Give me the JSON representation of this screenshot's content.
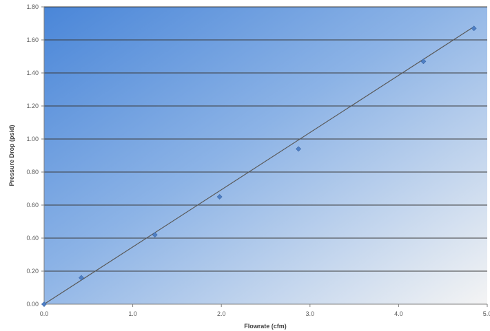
{
  "chart_data": {
    "type": "scatter",
    "title": "",
    "xlabel": "Flowrate (cfm)",
    "ylabel": "Pressure Drop (psid)",
    "xlim": [
      0.0,
      5.0
    ],
    "ylim": [
      0.0,
      1.8
    ],
    "x_ticks": [
      "0.0",
      "1.0",
      "2.0",
      "3.0",
      "4.0",
      "5.0"
    ],
    "y_ticks": [
      "0.00",
      "0.20",
      "0.40",
      "0.60",
      "0.80",
      "1.00",
      "1.20",
      "1.40",
      "1.60",
      "1.80"
    ],
    "grid": "horizontal",
    "legend": "none",
    "series": [
      {
        "points": [
          {
            "x": 0.0,
            "y": 0.0
          },
          {
            "x": 0.42,
            "y": 0.16
          },
          {
            "x": 1.25,
            "y": 0.42
          },
          {
            "x": 1.98,
            "y": 0.65
          },
          {
            "x": 2.87,
            "y": 0.94
          },
          {
            "x": 4.28,
            "y": 1.47
          },
          {
            "x": 4.85,
            "y": 1.67
          }
        ]
      }
    ],
    "trendline": {
      "type": "linear",
      "from": {
        "x": 0.0,
        "y": 0.0
      },
      "to": {
        "x": 4.85,
        "y": 1.68
      }
    },
    "colors": {
      "plot_gradient_start": "#4a86d8",
      "plot_gradient_end": "#f4f4f4",
      "marker": "#4f7fc4",
      "trendline": "#595959",
      "gridline": "#3a3a3a"
    }
  }
}
